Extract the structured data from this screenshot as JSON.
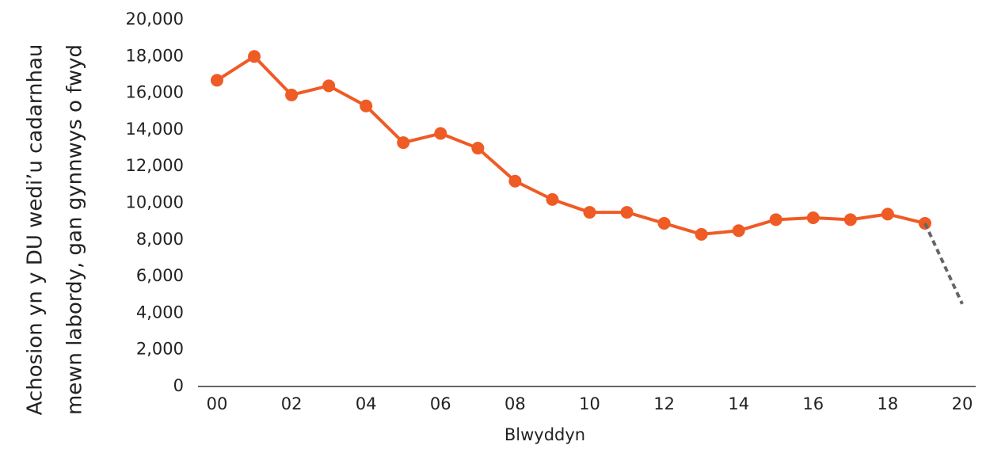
{
  "chart_data": {
    "type": "line",
    "x_label": "Blwyddyn",
    "y_label": [
      "Achosion yn y DU wedi’u cadarnhau",
      "mewn labordy, gan gynnwys o fwyd"
    ],
    "categories": [
      "00",
      null,
      "02",
      null,
      "04",
      null,
      "06",
      null,
      "08",
      null,
      "10",
      null,
      "12",
      null,
      "14",
      null,
      "16",
      null,
      "18",
      null,
      "20"
    ],
    "series": [
      {
        "color": "#ef5b25",
        "markers": true,
        "dashed": false,
        "values": [
          16700,
          18000,
          15900,
          16400,
          15300,
          13300,
          13800,
          13000,
          11200,
          10200,
          9500,
          9500,
          8900,
          8300,
          8500,
          9100,
          9200,
          9100,
          9400,
          8900,
          null
        ]
      },
      {
        "color": "#666666",
        "markers": false,
        "dashed": true,
        "values": [
          null,
          null,
          null,
          null,
          null,
          null,
          null,
          null,
          null,
          null,
          null,
          null,
          null,
          null,
          null,
          null,
          null,
          null,
          null,
          8900,
          4500
        ]
      }
    ],
    "ylim": [
      0,
      20000
    ],
    "yticks": [
      0,
      {
        "value": 2000,
        "label": "2,000"
      },
      {
        "value": 4000,
        "label": "4,000"
      },
      {
        "value": 6000,
        "label": "6,000"
      },
      {
        "value": 8000,
        "label": "8,000"
      },
      {
        "value": 10000,
        "label": "10,000"
      },
      {
        "value": 12000,
        "label": "12,000"
      },
      {
        "value": 14000,
        "label": "14,000"
      },
      {
        "value": 16000,
        "label": "16,000"
      },
      {
        "value": 18000,
        "label": "18,000"
      },
      {
        "value": 20000,
        "label": "20,000"
      }
    ],
    "grid": false
  }
}
